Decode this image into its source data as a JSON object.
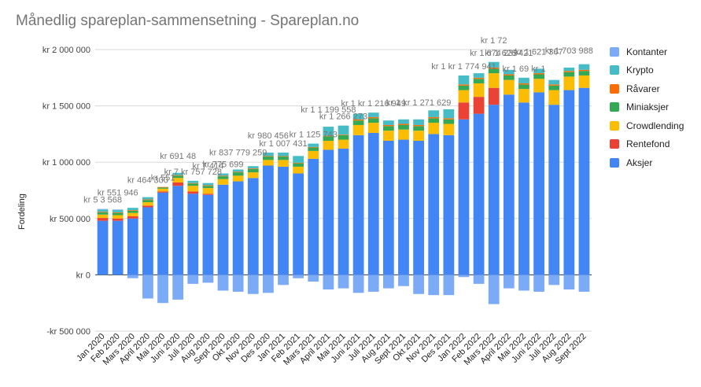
{
  "title": "Månedlig spareplan-sammensetning - Spareplan.no",
  "colors": {
    "Kontanter": "#7baaf7",
    "Krypto": "#46bdc6",
    "Råvarer": "#ff6d01",
    "Miniaksjer": "#34a853",
    "Crowdlending": "#fbbc04",
    "Rentefond": "#ea4335",
    "Aksjer": "#4285f4"
  },
  "chart_data": {
    "type": "bar",
    "stacked": true,
    "title": "Månedlig spareplan-sammensetning - Spareplan.no",
    "xlabel": "",
    "ylabel": "Fordeling",
    "ylim": [
      -500000,
      2000000
    ],
    "yticks": [
      -500000,
      0,
      500000,
      1000000,
      1500000,
      2000000
    ],
    "ytick_labels": [
      "-kr 500 000",
      "kr  0",
      "kr 500 000",
      "kr 1 000 000",
      "kr 1 500 000",
      "kr 2 000 000"
    ],
    "grid": true,
    "legend_position": "right",
    "categories": [
      "Jan 2020",
      "Feb 2020",
      "Mars 2020",
      "April 2020",
      "Mai 2020",
      "Juni 2020",
      "Juli 2020",
      "Aug 2020",
      "Sept 2020",
      "Okt 2020",
      "Nov 2020",
      "Des 2020",
      "Jan 2021",
      "Feb 2021",
      "Mars 2021",
      "April 2021",
      "Mai 2021",
      "Juni 2021",
      "Juli 2021",
      "Aug 2021",
      "Sept 2021",
      "Okt 2021",
      "Nov 2021",
      "Des 2021",
      "Jan 2022",
      "Feb 2022",
      "Mars 2022",
      "April 2022",
      "Mai 2022",
      "Juni 2022",
      "Juli 2022",
      "Aug 2022",
      "Sept 2022"
    ],
    "series": [
      {
        "name": "Aksjer",
        "values": [
          480000,
          480000,
          500000,
          600000,
          730000,
          790000,
          720000,
          710000,
          800000,
          830000,
          860000,
          970000,
          960000,
          900000,
          1030000,
          1110000,
          1120000,
          1240000,
          1260000,
          1190000,
          1200000,
          1190000,
          1250000,
          1240000,
          1380000,
          1430000,
          1510000,
          1600000,
          1530000,
          1620000,
          1510000,
          1640000,
          1660000
        ]
      },
      {
        "name": "Rentefond",
        "values": [
          25000,
          20000,
          20000,
          15000,
          10000,
          30000,
          20000,
          10000,
          0,
          0,
          0,
          0,
          0,
          0,
          0,
          0,
          0,
          0,
          0,
          0,
          0,
          0,
          0,
          0,
          150000,
          150000,
          150000,
          0,
          0,
          0,
          0,
          0,
          0
        ]
      },
      {
        "name": "Crowdlending",
        "values": [
          30000,
          30000,
          30000,
          30000,
          25000,
          40000,
          50000,
          50000,
          50000,
          50000,
          50000,
          50000,
          60000,
          60000,
          70000,
          80000,
          80000,
          90000,
          90000,
          90000,
          90000,
          90000,
          100000,
          100000,
          110000,
          120000,
          130000,
          130000,
          120000,
          120000,
          130000,
          120000,
          110000
        ]
      },
      {
        "name": "Miniaksjer",
        "values": [
          20000,
          20000,
          20000,
          20000,
          10000,
          20000,
          20000,
          20000,
          25000,
          30000,
          30000,
          30000,
          30000,
          30000,
          30000,
          40000,
          40000,
          40000,
          40000,
          40000,
          40000,
          40000,
          40000,
          40000,
          40000,
          40000,
          40000,
          40000,
          40000,
          40000,
          40000,
          40000,
          40000
        ]
      },
      {
        "name": "Råvarer",
        "values": [
          5000,
          5000,
          5000,
          5000,
          5000,
          5000,
          5000,
          5000,
          5000,
          5000,
          5000,
          5000,
          5000,
          5000,
          5000,
          5000,
          5000,
          10000,
          10000,
          10000,
          10000,
          10000,
          10000,
          10000,
          10000,
          10000,
          10000,
          10000,
          10000,
          10000,
          10000,
          10000,
          10000
        ]
      },
      {
        "name": "Krypto",
        "values": [
          20000,
          20000,
          20000,
          20000,
          0,
          20000,
          20000,
          20000,
          20000,
          20000,
          20000,
          30000,
          30000,
          60000,
          30000,
          80000,
          80000,
          50000,
          40000,
          40000,
          40000,
          50000,
          60000,
          80000,
          80000,
          40000,
          50000,
          40000,
          50000,
          40000,
          40000,
          30000,
          50000
        ]
      },
      {
        "name": "Kontanter",
        "values": [
          5000,
          5000,
          -30000,
          -210000,
          -250000,
          -220000,
          -80000,
          -70000,
          -140000,
          -150000,
          -170000,
          -160000,
          -90000,
          -30000,
          -60000,
          -130000,
          -120000,
          -160000,
          -150000,
          -120000,
          -100000,
          -170000,
          -180000,
          -180000,
          -20000,
          -80000,
          -260000,
          -120000,
          -140000,
          -150000,
          -90000,
          -130000,
          -150000
        ]
      }
    ],
    "data_labels": [
      {
        "index": 0,
        "text": "kr 5 3 568"
      },
      {
        "index": 1,
        "text": "kr 551 946"
      },
      {
        "index": 3,
        "text": "kr 464 300"
      },
      {
        "index": 4,
        "text": "kr 551"
      },
      {
        "index": 5,
        "text": "kr 691 48"
      },
      {
        "index": 6,
        "text": "kr 7 kr 757 728"
      },
      {
        "index": 7,
        "text": "kr 7 414"
      },
      {
        "index": 8,
        "text": "kr 775 699"
      },
      {
        "index": 9,
        "text": "kr 837 779 259"
      },
      {
        "index": 11,
        "text": "kr 980 456"
      },
      {
        "index": 12,
        "text": "kr 1 007 431"
      },
      {
        "index": 14,
        "text": "kr 1 125 743"
      },
      {
        "index": 15,
        "text": "kr 1 1 199 558"
      },
      {
        "index": 16,
        "text": "kr 1 266 273"
      },
      {
        "index": 18,
        "text": "kr 1 kr 1 216 949"
      },
      {
        "index": 21,
        "text": "kr 1 kr 1 271 629"
      },
      {
        "index": 24,
        "text": "kr 1 kr 1 774 941"
      },
      {
        "index": 26,
        "text": "kr 1 674 239"
      },
      {
        "index": 26,
        "text": "kr 1 72"
      },
      {
        "index": 27,
        "text": "kr 1 626 421"
      },
      {
        "index": 28,
        "text": "kr 1 69 kr 1"
      },
      {
        "index": 29,
        "text": "kr 1 621 367"
      },
      {
        "index": 31,
        "text": "kr 1 703 988"
      }
    ]
  }
}
